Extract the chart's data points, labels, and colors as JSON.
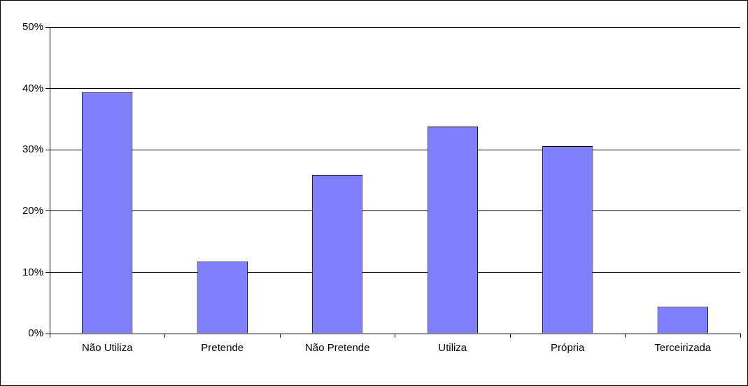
{
  "chart_data": {
    "type": "bar",
    "categories": [
      "Não Utiliza",
      "Pretende",
      "Não Pretende",
      "Utiliza",
      "Própria",
      "Terceirizada"
    ],
    "values": [
      39.4,
      11.8,
      25.9,
      33.8,
      30.6,
      4.4
    ],
    "color": "#8080ff",
    "ylim": [
      0,
      50
    ],
    "yticks": [
      {
        "value": 0,
        "label": "0%"
      },
      {
        "value": 10,
        "label": "10%"
      },
      {
        "value": 20,
        "label": "20%"
      },
      {
        "value": 30,
        "label": "30%"
      },
      {
        "value": 40,
        "label": "40%"
      },
      {
        "value": 50,
        "label": "50%"
      }
    ],
    "grid": "y"
  }
}
